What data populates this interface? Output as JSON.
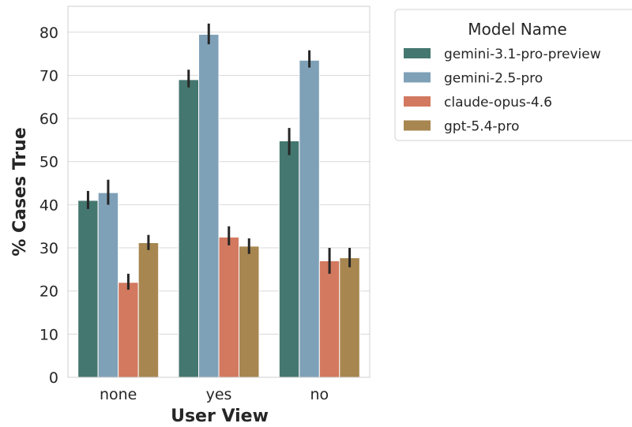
{
  "chart_data": {
    "type": "bar",
    "xlabel": "User View",
    "ylabel": "% Cases True",
    "categories": [
      "none",
      "yes",
      "no"
    ],
    "ylim": [
      0,
      86
    ],
    "yticks": [
      0,
      10,
      20,
      30,
      40,
      50,
      60,
      70,
      80
    ],
    "grid": true,
    "legend": {
      "title": "Model Name",
      "placement": "outside-top-right"
    },
    "series": [
      {
        "name": "gemini-3.1-pro-preview",
        "color": "#44776f",
        "values": [
          41.0,
          69.0,
          54.8
        ],
        "err_low": [
          39.0,
          67.2,
          51.5
        ],
        "err_high": [
          43.2,
          71.3,
          57.8
        ]
      },
      {
        "name": "gemini-2.5-pro",
        "color": "#7fa1b8",
        "values": [
          42.8,
          79.5,
          73.5
        ],
        "err_low": [
          40.0,
          77.2,
          71.8
        ],
        "err_high": [
          45.8,
          82.0,
          75.8
        ]
      },
      {
        "name": "claude-opus-4.6",
        "color": "#d2795f",
        "values": [
          22.0,
          32.5,
          27.0
        ],
        "err_low": [
          20.3,
          30.6,
          24.0
        ],
        "err_high": [
          24.0,
          35.0,
          30.0
        ]
      },
      {
        "name": "gpt-5.4-pro",
        "color": "#a88650",
        "values": [
          31.2,
          30.4,
          27.7
        ],
        "err_low": [
          29.5,
          28.6,
          25.5
        ],
        "err_high": [
          33.0,
          32.2,
          30.0
        ]
      }
    ]
  }
}
